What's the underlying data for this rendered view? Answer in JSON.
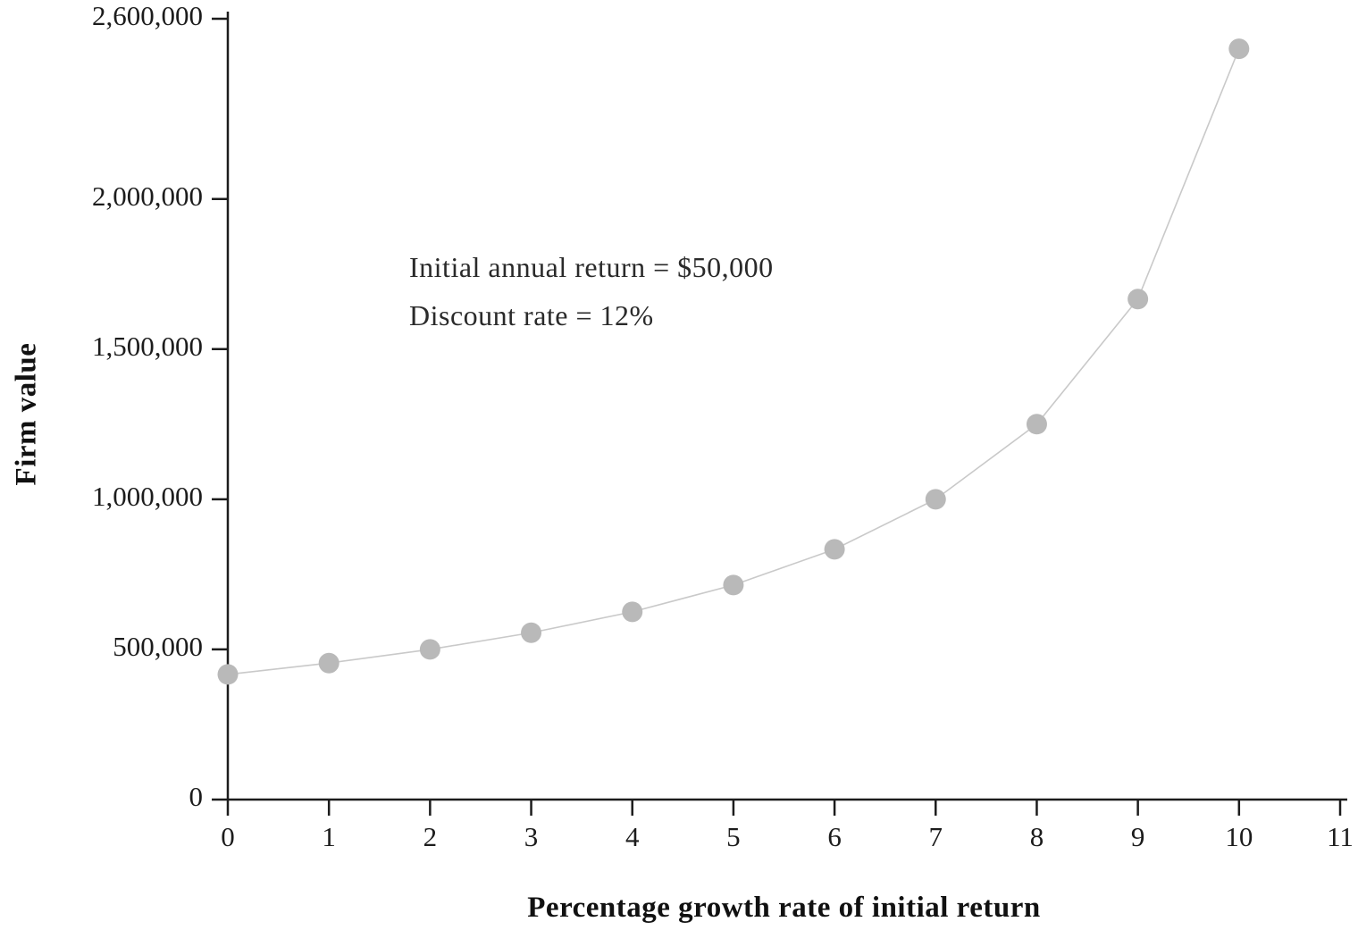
{
  "chart_data": {
    "type": "line",
    "x": [
      0,
      1,
      2,
      3,
      4,
      5,
      6,
      7,
      8,
      9,
      10
    ],
    "y": [
      416667,
      454545,
      500000,
      555556,
      625000,
      714286,
      833333,
      1000000,
      1250000,
      1666667,
      2500000
    ],
    "xlabel": "Percentage growth rate of initial return",
    "ylabel": "Firm value",
    "annotation_line1": "Initial annual return = $50,000",
    "annotation_line2": "Discount rate = 12%",
    "x_ticks": [
      {
        "v": 0,
        "label": "0"
      },
      {
        "v": 1,
        "label": "1"
      },
      {
        "v": 2,
        "label": "2"
      },
      {
        "v": 3,
        "label": "3"
      },
      {
        "v": 4,
        "label": "4"
      },
      {
        "v": 5,
        "label": "5"
      },
      {
        "v": 6,
        "label": "6"
      },
      {
        "v": 7,
        "label": "7"
      },
      {
        "v": 8,
        "label": "8"
      },
      {
        "v": 9,
        "label": "9"
      },
      {
        "v": 10,
        "label": "10"
      },
      {
        "v": 11,
        "label": "11"
      }
    ],
    "y_ticks": [
      {
        "v": 0,
        "label": "0"
      },
      {
        "v": 500000,
        "label": "500,000"
      },
      {
        "v": 1000000,
        "label": "1,000,000"
      },
      {
        "v": 1500000,
        "label": "1,500,000"
      },
      {
        "v": 2000000,
        "label": "2,000,000"
      },
      {
        "v": 2600000,
        "label": "2,600,000"
      }
    ],
    "xlim": [
      0,
      11
    ],
    "ylim": [
      0,
      2600000
    ],
    "legend": false,
    "grid": false,
    "colors": {
      "line": "#c9c9c9",
      "marker": "#b9b9b9",
      "axis": "#1c1c1c",
      "tick_text": "#1c1c1c"
    }
  }
}
